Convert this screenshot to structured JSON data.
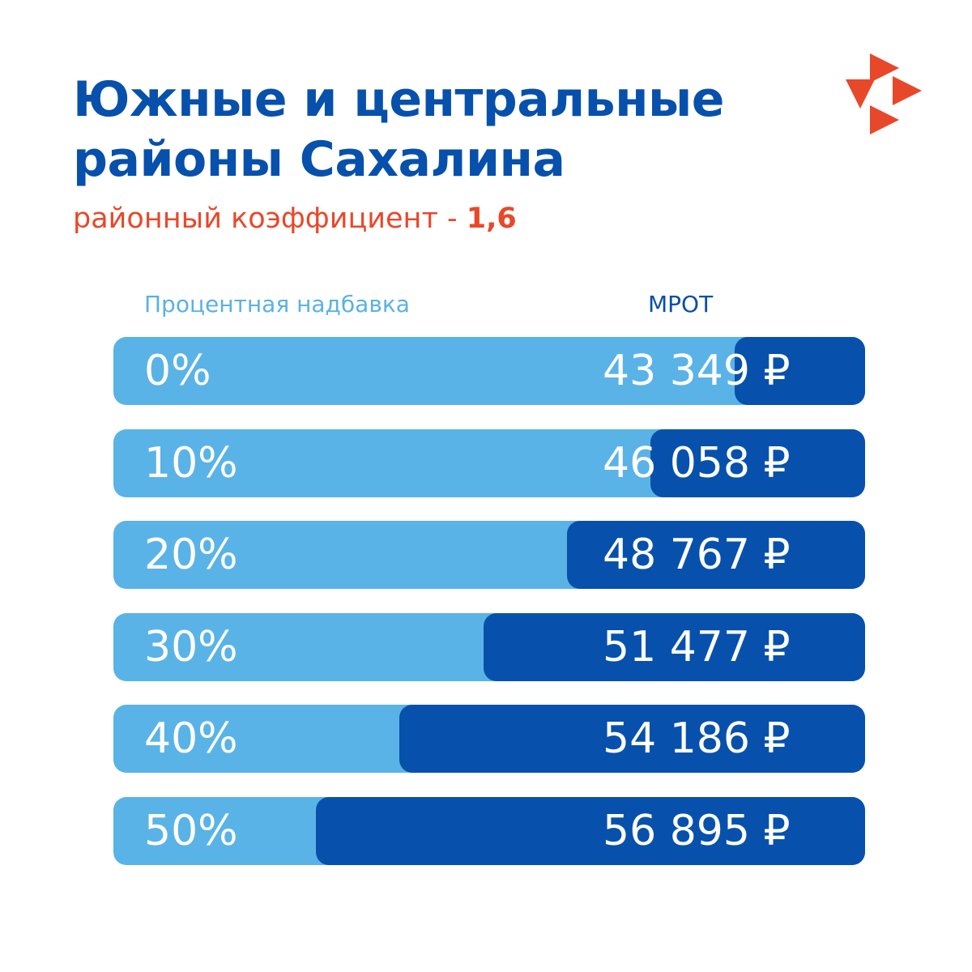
{
  "header": {
    "title_line1": "Южные и центральные",
    "title_line2": "районы Сахалина",
    "subtitle_prefix": "районный коэффициент - ",
    "subtitle_value": "1,6"
  },
  "colors": {
    "title": "#0750ac",
    "accent": "#e8482a",
    "bar_light": "#5ab3e6",
    "bar_dark": "#0751ac"
  },
  "logo": {
    "icon": "orange-arrows-logo-icon"
  },
  "chart_data": {
    "type": "bar",
    "orientation": "horizontal",
    "column_headers": {
      "category": "Процентная надбавка",
      "value": "МРОТ"
    },
    "categories": [
      "0%",
      "10%",
      "20%",
      "30%",
      "40%",
      "50%"
    ],
    "values": [
      43349,
      46058,
      48767,
      51477,
      54186,
      56895
    ],
    "value_labels": [
      "43 349 ₽",
      "46 058 ₽",
      "48 767 ₽",
      "51 477 ₽",
      "54 186 ₽",
      "56 895 ₽"
    ],
    "unit": "₽"
  }
}
